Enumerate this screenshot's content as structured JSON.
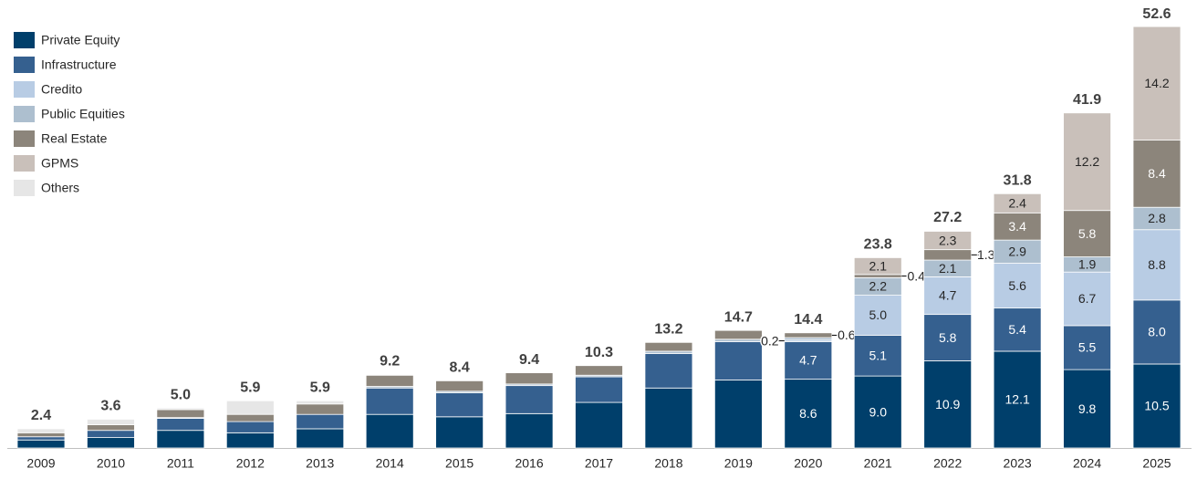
{
  "chart_data": {
    "type": "stacked_bar",
    "categories": [
      "2009",
      "2010",
      "2011",
      "2012",
      "2013",
      "2014",
      "2015",
      "2016",
      "2017",
      "2018",
      "2019",
      "2020",
      "2021",
      "2022",
      "2023",
      "2024",
      "2025"
    ],
    "totals": [
      2.4,
      3.6,
      5.0,
      5.9,
      5.9,
      9.2,
      8.4,
      9.4,
      10.3,
      13.2,
      14.7,
      14.4,
      23.8,
      27.2,
      31.8,
      41.9,
      52.6
    ],
    "total_labels": [
      "2.4",
      "3.6",
      "5.0",
      "5.9",
      "5.9",
      "9.2",
      "8.4",
      "9.4",
      "10.3",
      "13.2",
      "14.7",
      "14.4",
      "23.8",
      "27.2",
      "31.8",
      "41.9",
      "52.6"
    ],
    "series": [
      {
        "name": "Private Equity",
        "color": "#003f6b",
        "values": [
          1.0,
          1.3,
          2.2,
          1.9,
          2.4,
          4.2,
          3.9,
          4.3,
          5.7,
          7.5,
          8.5,
          8.6,
          9.0,
          10.9,
          12.1,
          9.8,
          10.5
        ],
        "value_labels": [
          null,
          null,
          null,
          null,
          null,
          null,
          null,
          null,
          null,
          null,
          null,
          "8.6",
          "9.0",
          "10.9",
          "12.1",
          "9.8",
          "10.5"
        ]
      },
      {
        "name": "Infrastructure",
        "color": "#35608f",
        "values": [
          0.4,
          0.9,
          1.5,
          1.4,
          1.8,
          3.3,
          3.0,
          3.5,
          3.2,
          4.3,
          4.8,
          4.7,
          5.1,
          5.8,
          5.4,
          5.5,
          8.0
        ],
        "value_labels": [
          null,
          null,
          null,
          null,
          null,
          null,
          null,
          null,
          null,
          null,
          null,
          "4.7",
          "5.1",
          "5.8",
          "5.4",
          "5.5",
          "8.0"
        ]
      },
      {
        "name": "Credito",
        "color": "#b8cce4",
        "values": [
          null,
          null,
          null,
          null,
          null,
          null,
          null,
          null,
          null,
          null,
          null,
          0.2,
          5.0,
          4.7,
          5.6,
          6.7,
          8.8
        ],
        "value_labels": [
          null,
          null,
          null,
          null,
          null,
          null,
          null,
          null,
          null,
          null,
          null,
          "0.2",
          "5.0",
          "4.7",
          "5.6",
          "6.7",
          "8.8"
        ]
      },
      {
        "name": "Public Equities",
        "color": "#adbfcf",
        "values": [
          null,
          null,
          0.1,
          null,
          null,
          0.2,
          0.2,
          0.2,
          0.2,
          0.3,
          0.3,
          0.3,
          2.2,
          2.1,
          2.9,
          1.9,
          2.8
        ],
        "value_labels": [
          null,
          null,
          null,
          null,
          null,
          null,
          null,
          null,
          null,
          null,
          null,
          null,
          "2.2",
          "2.1",
          "2.9",
          "1.9",
          "2.8"
        ]
      },
      {
        "name": "Real Estate",
        "color": "#8c857b",
        "values": [
          0.5,
          0.7,
          1.0,
          0.9,
          1.3,
          1.4,
          1.3,
          1.4,
          1.2,
          1.1,
          1.1,
          0.6,
          0.4,
          1.3,
          3.4,
          5.8,
          8.4
        ],
        "value_labels": [
          null,
          null,
          null,
          null,
          null,
          null,
          null,
          null,
          null,
          null,
          null,
          "0.6",
          "0.4",
          "1.3",
          "3.4",
          "5.8",
          "8.4"
        ]
      },
      {
        "name": "GPMS",
        "color": "#c9c0ba",
        "values": [
          null,
          null,
          null,
          null,
          null,
          null,
          null,
          null,
          null,
          null,
          null,
          null,
          2.1,
          2.3,
          2.4,
          12.2,
          14.2
        ],
        "value_labels": [
          null,
          null,
          null,
          null,
          null,
          null,
          null,
          null,
          null,
          null,
          null,
          null,
          "2.1",
          "2.3",
          "2.4",
          "12.2",
          "14.2"
        ]
      },
      {
        "name": "Others",
        "color": "#e6e6e6",
        "values": [
          0.5,
          0.7,
          0.2,
          1.7,
          0.4,
          0.1,
          null,
          null,
          null,
          null,
          null,
          null,
          null,
          null,
          null,
          null,
          null
        ],
        "value_labels": [
          null,
          null,
          null,
          null,
          null,
          null,
          null,
          null,
          null,
          null,
          null,
          null,
          null,
          null,
          null,
          null,
          null
        ]
      }
    ]
  }
}
